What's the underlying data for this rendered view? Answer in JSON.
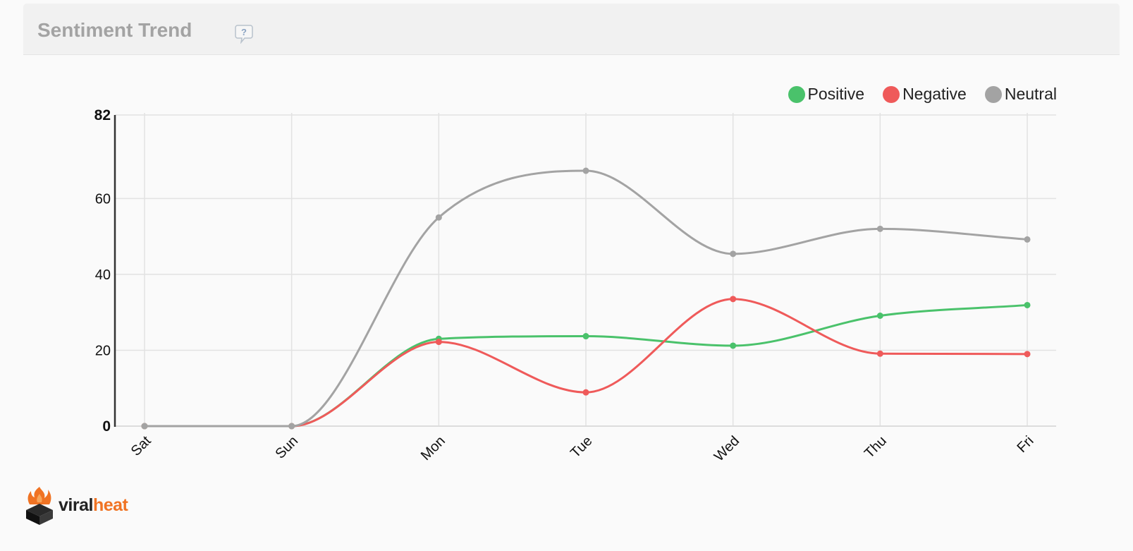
{
  "panel": {
    "title": "Sentiment Trend",
    "help_icon": "help-question-icon"
  },
  "brand": {
    "name_part1": "viral",
    "name_part2": "heat",
    "logo_icon": "flame-box-icon",
    "color_dark": "#222222",
    "color_accent": "#f07323"
  },
  "chart_data": {
    "type": "line",
    "title": "",
    "xlabel": "",
    "ylabel": "",
    "categories": [
      "Sat",
      "Sun",
      "Mon",
      "Tue",
      "Wed",
      "Thu",
      "Fri"
    ],
    "ylim": [
      0,
      82
    ],
    "yticks": [
      0,
      20,
      40,
      60,
      82
    ],
    "grid": true,
    "legend_position": "top-right",
    "series": [
      {
        "name": "Positive",
        "color": "#4ac26b",
        "values": [
          0,
          0,
          23,
          23.7,
          21.2,
          29.1,
          31.9
        ]
      },
      {
        "name": "Negative",
        "color": "#ef5a5a",
        "values": [
          0,
          0,
          22.2,
          8.9,
          33.5,
          19.1,
          19
        ]
      },
      {
        "name": "Neutral",
        "color": "#a3a3a3",
        "values": [
          0,
          0,
          55,
          67.3,
          45.4,
          52,
          49.2
        ]
      }
    ]
  }
}
